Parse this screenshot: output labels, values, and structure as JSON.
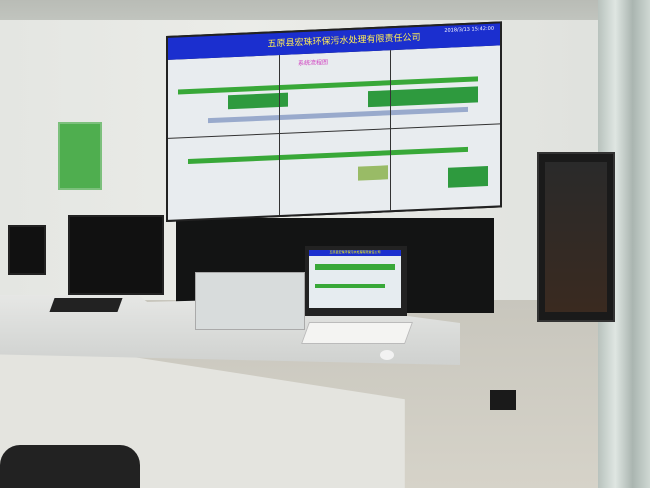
{
  "video_wall": {
    "title": "五原县宏珠环保污水处理有限责任公司",
    "timestamp": "2018/3/13 15:42:00",
    "subtitle": "系统流程图"
  },
  "monitor": {
    "title": "五原县宏珠环保污水处理有限责任公司"
  },
  "colors": {
    "header": "#1b2fcf",
    "title_text": "#ffee55",
    "process_pipe": "#38a838"
  }
}
